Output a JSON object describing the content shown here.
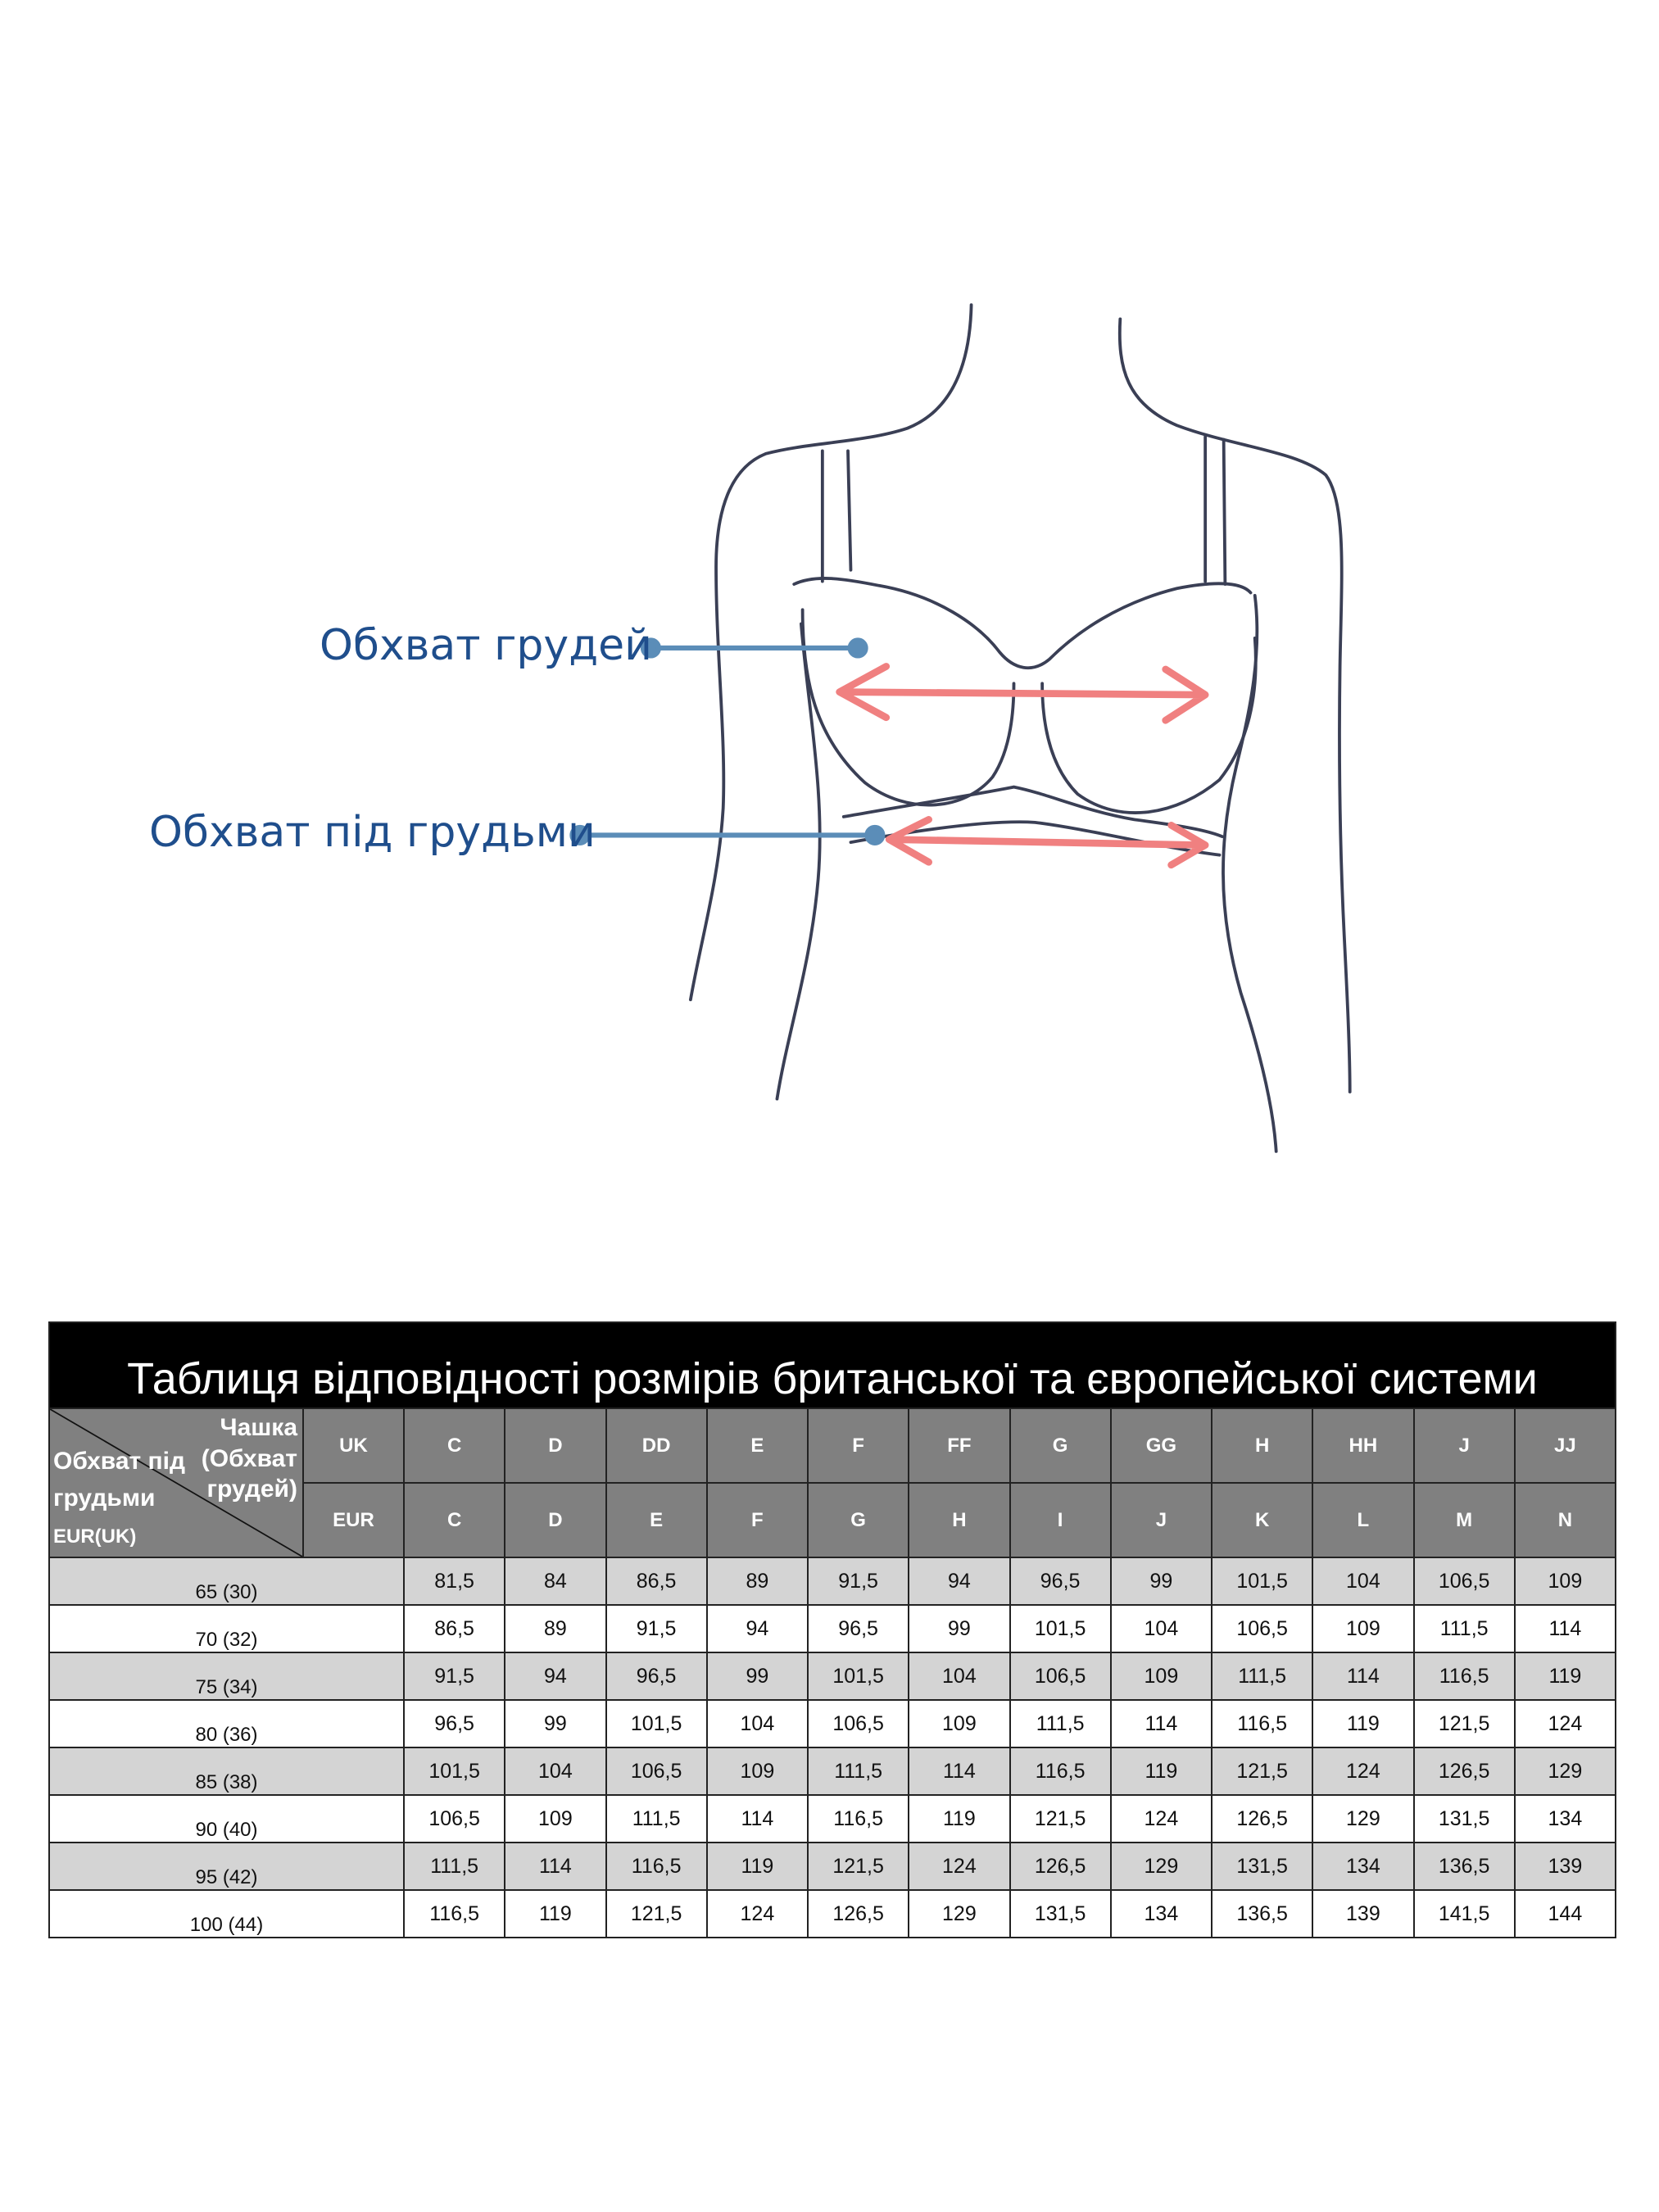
{
  "illustration": {
    "bust_label": "Обхват грудей",
    "underbust_label": "Обхват під грудьми",
    "label_color": "#1f4e8c",
    "pointer_color": "#5b8db8",
    "arrow_color": "#f08080"
  },
  "table": {
    "title": "Таблиця відповідності розмірів британської та європейської системи",
    "corner_top": "Чашка (Обхват грудей)",
    "corner_bottom_main": "Обхват під грудьми",
    "corner_bottom_small": "EUR(UK)",
    "uk_label": "UK",
    "eur_label": "EUR",
    "uk_cups": [
      "C",
      "D",
      "DD",
      "E",
      "F",
      "FF",
      "G",
      "GG",
      "H",
      "HH",
      "J",
      "JJ"
    ],
    "eur_cups": [
      "C",
      "D",
      "E",
      "F",
      "G",
      "H",
      "I",
      "J",
      "K",
      "L",
      "M",
      "N"
    ],
    "rows": [
      {
        "label": "65 (30)",
        "values": [
          "81,5",
          "84",
          "86,5",
          "89",
          "91,5",
          "94",
          "96,5",
          "99",
          "101,5",
          "104",
          "106,5",
          "109"
        ]
      },
      {
        "label": "70 (32)",
        "values": [
          "86,5",
          "89",
          "91,5",
          "94",
          "96,5",
          "99",
          "101,5",
          "104",
          "106,5",
          "109",
          "111,5",
          "114"
        ]
      },
      {
        "label": "75 (34)",
        "values": [
          "91,5",
          "94",
          "96,5",
          "99",
          "101,5",
          "104",
          "106,5",
          "109",
          "111,5",
          "114",
          "116,5",
          "119"
        ]
      },
      {
        "label": "80 (36)",
        "values": [
          "96,5",
          "99",
          "101,5",
          "104",
          "106,5",
          "109",
          "111,5",
          "114",
          "116,5",
          "119",
          "121,5",
          "124"
        ]
      },
      {
        "label": "85 (38)",
        "values": [
          "101,5",
          "104",
          "106,5",
          "109",
          "111,5",
          "114",
          "116,5",
          "119",
          "121,5",
          "124",
          "126,5",
          "129"
        ]
      },
      {
        "label": "90 (40)",
        "values": [
          "106,5",
          "109",
          "111,5",
          "114",
          "116,5",
          "119",
          "121,5",
          "124",
          "126,5",
          "129",
          "131,5",
          "134"
        ]
      },
      {
        "label": "95 (42)",
        "values": [
          "111,5",
          "114",
          "116,5",
          "119",
          "121,5",
          "124",
          "126,5",
          "129",
          "131,5",
          "134",
          "136,5",
          "139"
        ]
      },
      {
        "label": "100 (44)",
        "values": [
          "116,5",
          "119",
          "121,5",
          "124",
          "126,5",
          "129",
          "131,5",
          "134",
          "136,5",
          "139",
          "141,5",
          "144"
        ]
      }
    ]
  }
}
